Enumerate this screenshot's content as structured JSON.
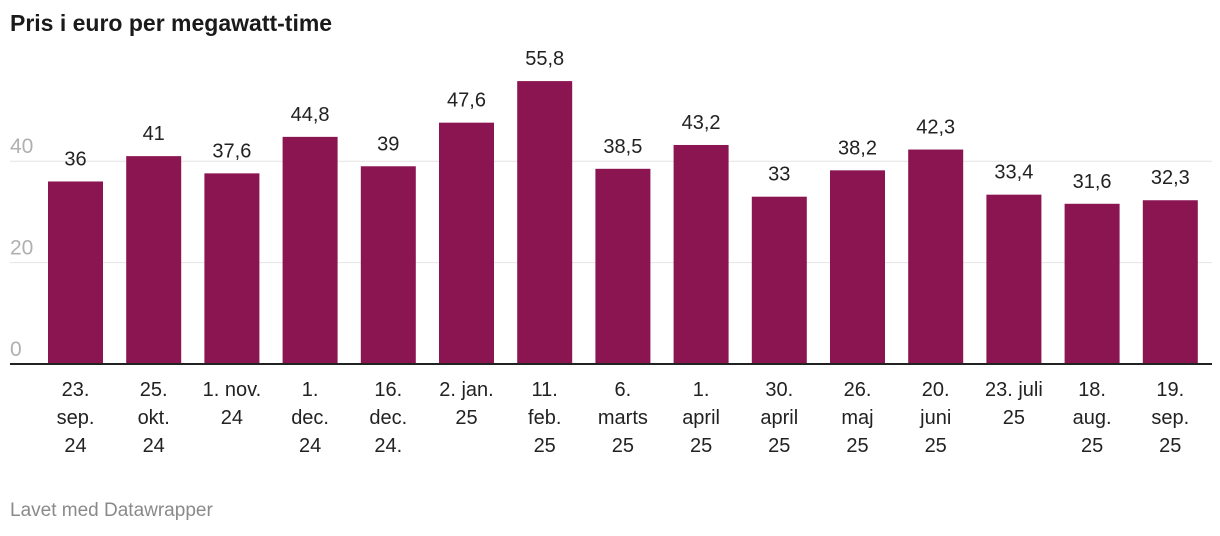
{
  "title": "Pris i euro per megawatt-time",
  "footer": "Lavet med Datawrapper",
  "colors": {
    "bar": "#8b1550",
    "grid": "#e4e4e4",
    "axis": "#222222"
  },
  "chart_data": {
    "type": "bar",
    "title": "Pris i euro per megawatt-time",
    "xlabel": "",
    "ylabel": "",
    "ylim": [
      0,
      60
    ],
    "yticks": [
      0,
      20,
      40
    ],
    "grid": true,
    "categories": [
      "23. sep. 24",
      "25. okt. 24",
      "1. nov. 24",
      "1. dec. 24",
      "16. dec. 24.",
      "2. jan. 25",
      "11. feb. 25",
      "6. marts 25",
      "1. april 25",
      "30. april 25",
      "26. maj 25",
      "20. juni 25",
      "23. juli 25",
      "18. aug. 25",
      "19. sep. 25"
    ],
    "category_lines": [
      [
        "23.",
        "sep.",
        "24"
      ],
      [
        "25.",
        "okt.",
        "24"
      ],
      [
        "1. nov.",
        "24"
      ],
      [
        "1.",
        "dec.",
        "24"
      ],
      [
        "16.",
        "dec.",
        "24."
      ],
      [
        "2. jan.",
        "25"
      ],
      [
        "11.",
        "feb.",
        "25"
      ],
      [
        "6.",
        "marts",
        "25"
      ],
      [
        "1.",
        "april",
        "25"
      ],
      [
        "30.",
        "april",
        "25"
      ],
      [
        "26.",
        "maj",
        "25"
      ],
      [
        "20.",
        "juni",
        "25"
      ],
      [
        "23. juli",
        "25"
      ],
      [
        "18.",
        "aug.",
        "25"
      ],
      [
        "19.",
        "sep.",
        "25"
      ]
    ],
    "values": [
      36,
      41,
      37.6,
      44.8,
      39,
      47.6,
      55.8,
      38.5,
      43.2,
      33,
      38.2,
      42.3,
      33.4,
      31.6,
      32.3
    ],
    "labels": [
      "36",
      "41",
      "37,6",
      "44,8",
      "39",
      "47,6",
      "55,8",
      "38,5",
      "43,2",
      "33",
      "38,2",
      "42,3",
      "33,4",
      "31,6",
      "32,3"
    ]
  }
}
